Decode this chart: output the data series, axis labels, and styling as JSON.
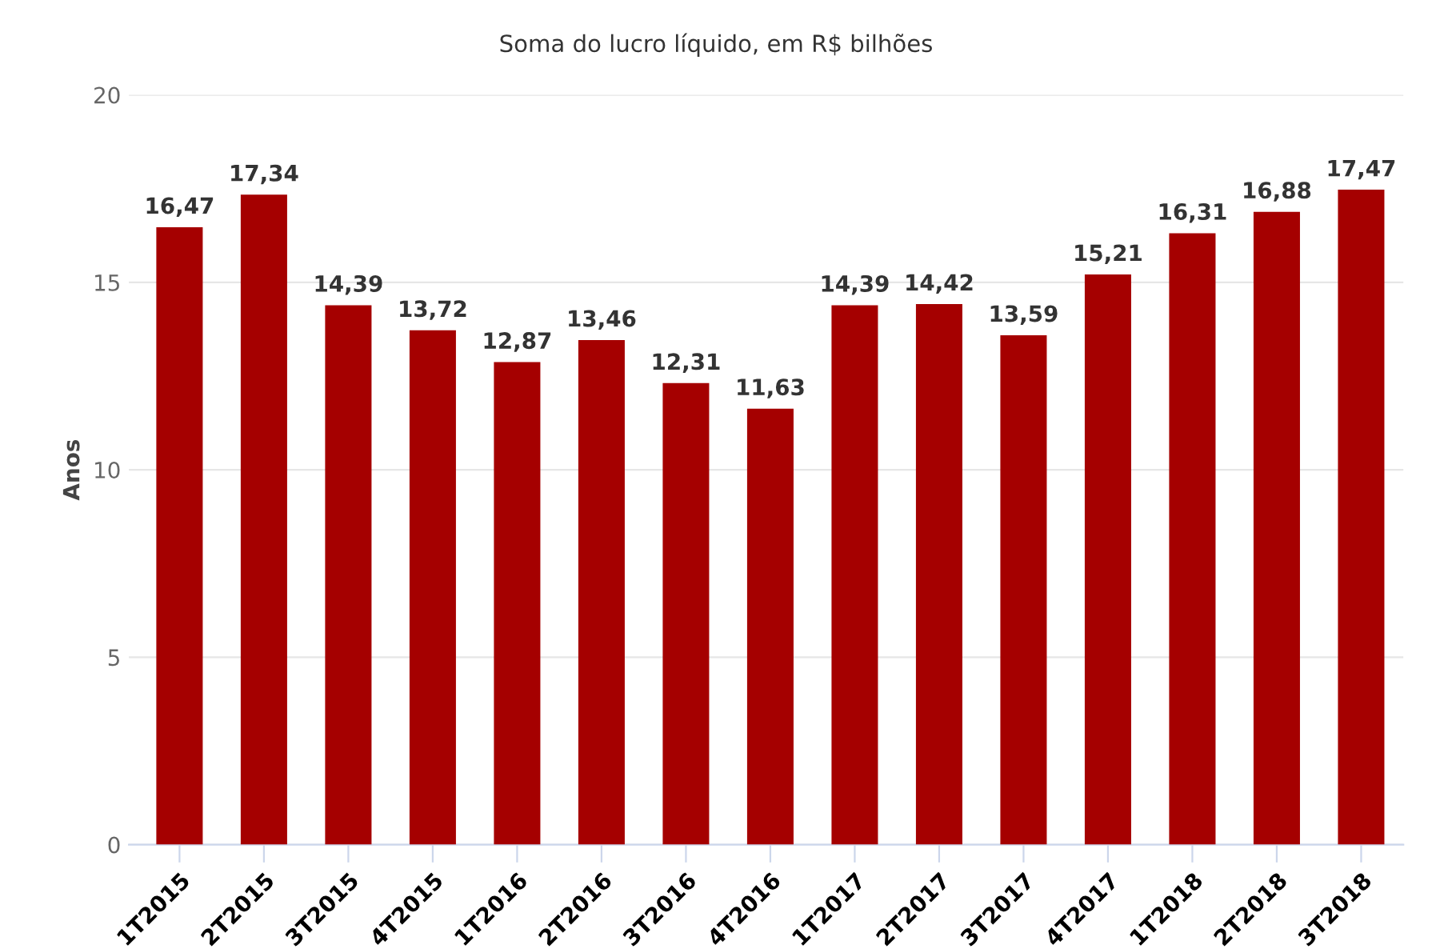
{
  "chart_data": {
    "type": "bar",
    "title": "Soma do lucro líquido, em R$ bilhões",
    "ylabel": "Anos",
    "categories": [
      "1T2015",
      "2T2015",
      "3T2015",
      "4T2015",
      "1T2016",
      "2T2016",
      "3T2016",
      "4T2016",
      "1T2017",
      "2T2017",
      "3T2017",
      "4T2017",
      "1T2018",
      "2T2018",
      "3T2018"
    ],
    "values": [
      16.47,
      17.34,
      14.39,
      13.72,
      12.87,
      13.46,
      12.31,
      11.63,
      14.39,
      14.42,
      13.59,
      15.21,
      16.31,
      16.88,
      17.47
    ],
    "value_labels": [
      "16,47",
      "17,34",
      "14,39",
      "13,72",
      "12,87",
      "13,46",
      "12,31",
      "11,63",
      "14,39",
      "14,42",
      "13,59",
      "15,21",
      "16,31",
      "16,88",
      "17,47"
    ],
    "color": "#a50000",
    "ylim": [
      0,
      20
    ],
    "yticks": [
      0,
      5,
      10,
      15,
      20
    ],
    "grid": "y",
    "legend": false
  }
}
